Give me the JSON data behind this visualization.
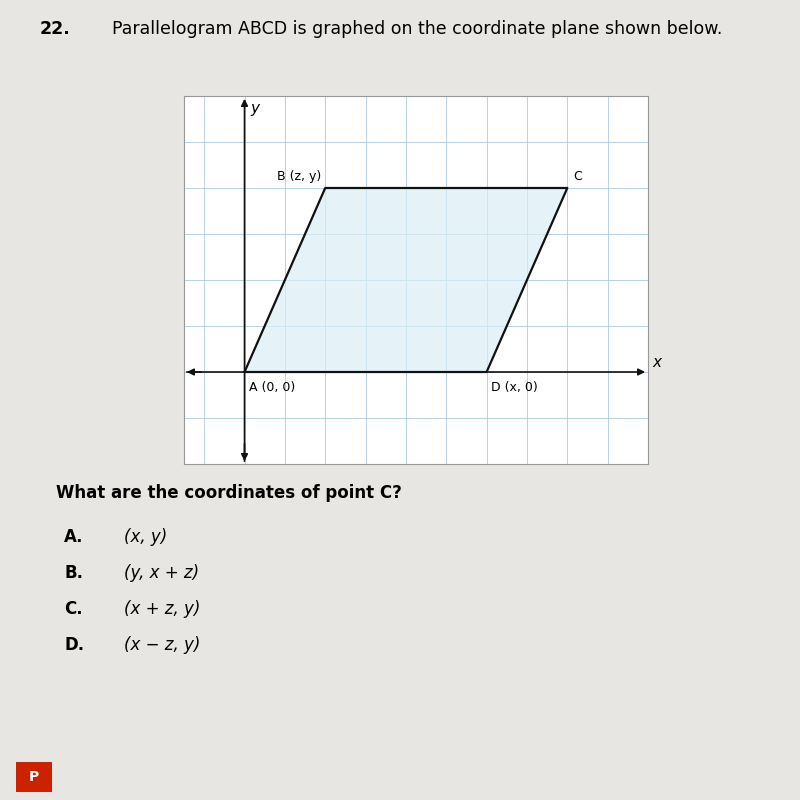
{
  "title_number": "22.",
  "title_text": "Parallelogram ABCD is graphed on the coordinate plane shown below.",
  "question": "What are the coordinates of point C?",
  "choices": [
    {
      "label": "A.",
      "text": "(x, y)"
    },
    {
      "label": "B.",
      "text": "(y, x + z)"
    },
    {
      "label": "C.",
      "text": "(x + z, y)"
    },
    {
      "label": "D.",
      "text": "(x − z, y)"
    }
  ],
  "background_color": "#e8e6e2",
  "grid_background": "#ffffff",
  "parallelogram_fill": "#daeef7",
  "parallelogram_edge_color": "#111111",
  "parallelogram_linewidth": 1.6,
  "grid_color": "#aaccdd",
  "grid_linewidth": 0.6,
  "axis_color": "#111111",
  "points": {
    "A": [
      0,
      0
    ],
    "B": [
      2,
      4
    ],
    "C": [
      8,
      4
    ],
    "D": [
      6,
      0
    ]
  },
  "point_labels": {
    "A": "A (0, 0)",
    "B": "B (z, y)",
    "C": "C",
    "D": "D (x, 0)"
  },
  "grid_xlim": [
    -1.5,
    10
  ],
  "grid_ylim": [
    -2,
    6
  ],
  "x_axis_label": "x",
  "y_axis_label": "y",
  "font_size_title": 12.5,
  "font_size_point_labels": 9,
  "font_size_question": 12,
  "font_size_choices": 12,
  "font_size_axis_labels": 11
}
